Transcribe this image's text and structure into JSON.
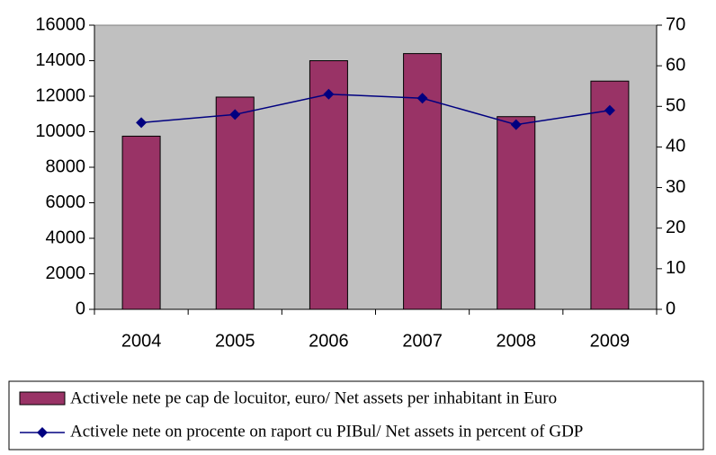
{
  "chart_data": {
    "type": "bar_line",
    "categories": [
      "2004",
      "2005",
      "2006",
      "2007",
      "2008",
      "2009"
    ],
    "series": [
      {
        "name": "Activele nete pe cap de locuitor, euro/ Net assets per inhabitant in Euro",
        "color": "#993366",
        "type": "bar",
        "values": [
          9750,
          11950,
          14000,
          14400,
          10850,
          12850
        ]
      },
      {
        "name": "Activele nete on procente on raport cu PIBul/ Net assets in percent of GDP",
        "color": "#000080",
        "type": "line",
        "axis": "y2",
        "values": [
          46,
          48,
          53,
          52,
          45.5,
          49
        ]
      }
    ],
    "ylim": [
      0,
      16000
    ],
    "yticks": [
      0,
      2000,
      4000,
      6000,
      8000,
      10000,
      12000,
      14000,
      16000
    ],
    "y2lim": [
      0,
      70
    ],
    "y2ticks": [
      0,
      10,
      20,
      30,
      40,
      50,
      60,
      70
    ],
    "plot_background": "#c0c0c0"
  }
}
